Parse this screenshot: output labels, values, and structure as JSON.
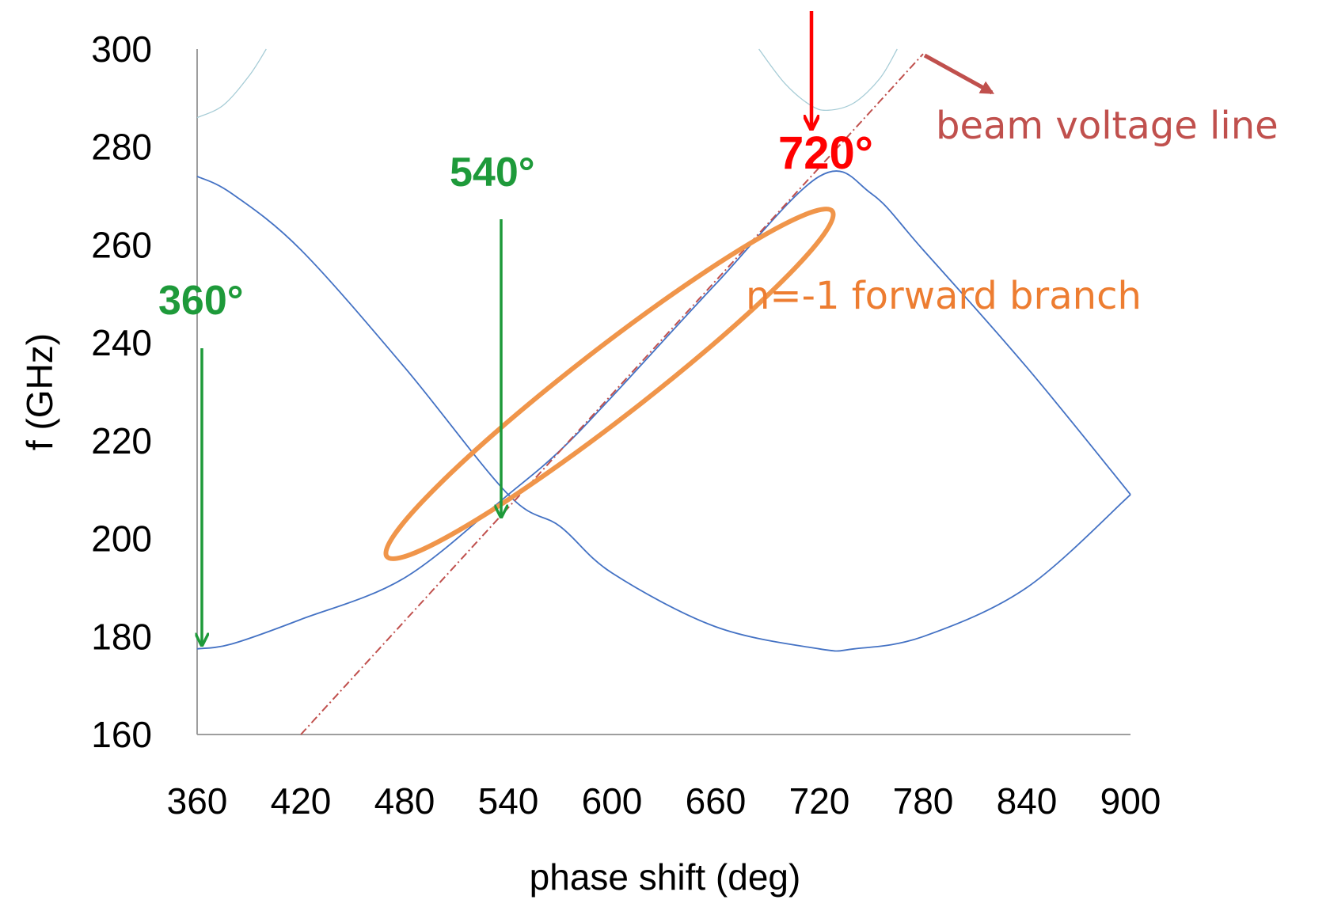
{
  "chart_data": {
    "type": "line",
    "title": "",
    "xlabel": "phase shift (deg)",
    "ylabel": "f (GHz)",
    "xlim": [
      360,
      900
    ],
    "ylim": [
      160,
      300
    ],
    "x_ticks": [
      "360",
      "420",
      "480",
      "540",
      "600",
      "660",
      "720",
      "780",
      "840",
      "900"
    ],
    "y_ticks": [
      "160",
      "180",
      "200",
      "220",
      "240",
      "260",
      "280",
      "300"
    ],
    "grid": false,
    "legend": "none",
    "series": [
      {
        "color": "#4472c4",
        "x": [
          360,
          380,
          420,
          480,
          540,
          570,
          600,
          660,
          720,
          750,
          780,
          840,
          900
        ],
        "y": [
          177.5,
          178.5,
          183.5,
          192,
          209,
          218,
          229,
          252,
          274,
          270.5,
          259,
          235,
          209
        ]
      },
      {
        "color": "#4472c4",
        "x": [
          360,
          380,
          420,
          480,
          540,
          570,
          600,
          660,
          720,
          740,
          780,
          840,
          900
        ],
        "y": [
          274,
          270.5,
          259,
          235,
          209,
          202.5,
          193,
          182,
          177.5,
          177.5,
          180,
          190,
          209
        ]
      },
      {
        "color": "#a6ccd6",
        "x": [
          360,
          375,
          390,
          400
        ],
        "y": [
          286,
          288.5,
          294.5,
          300
        ]
      },
      {
        "color": "#a6ccd6",
        "x": [
          685,
          700,
          715,
          725,
          740,
          755,
          765
        ],
        "y": [
          300,
          293,
          288.5,
          287.5,
          289,
          294,
          300
        ]
      },
      {
        "color": "#c0504d",
        "dash": "dash-dot",
        "x": [
          420,
          780
        ],
        "y": [
          160,
          299
        ]
      }
    ],
    "annotations": [
      {
        "label": "360°",
        "color": "#1e9a3a",
        "x": 360,
        "y": 177.5
      },
      {
        "label": "540°",
        "color": "#1e9a3a",
        "x": 540,
        "y": 204
      },
      {
        "label": "720°",
        "color": "#ff0000",
        "x": 720,
        "y": 285
      },
      {
        "label": "beam voltage line",
        "color": "#c0504d"
      },
      {
        "label": "n=-1 forward branch",
        "color": "#ed7d31"
      }
    ]
  }
}
